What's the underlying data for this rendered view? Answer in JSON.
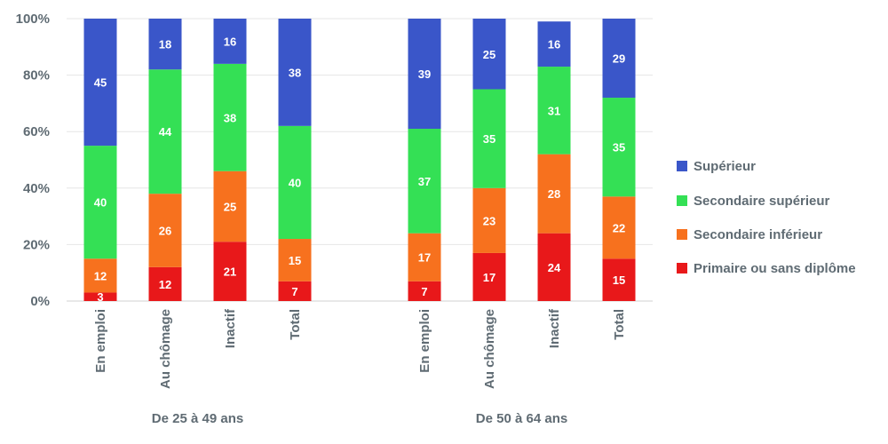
{
  "chart_data": {
    "type": "bar",
    "stacked": true,
    "y_tick_labels": [
      "0%",
      "20%",
      "40%",
      "60%",
      "80%",
      "100%"
    ],
    "ylim": [
      0,
      100
    ],
    "grid": true,
    "legend_position": "right",
    "groups": [
      {
        "label": "De 25 à 49 ans",
        "categories": [
          "En emploi",
          "Au chômage",
          "Inactif",
          "Total"
        ]
      },
      {
        "label": "De 50 à 64 ans",
        "categories": [
          "En emploi",
          "Au chômage",
          "Inactif",
          "Total"
        ]
      }
    ],
    "series": [
      {
        "name": "Primaire ou sans diplôme",
        "color": "#e8181a",
        "values": [
          3,
          12,
          21,
          7,
          7,
          17,
          24,
          15
        ]
      },
      {
        "name": "Secondaire inférieur",
        "color": "#f7711e",
        "values": [
          12,
          26,
          25,
          15,
          17,
          23,
          28,
          22
        ]
      },
      {
        "name": "Secondaire supérieur",
        "color": "#34e055",
        "values": [
          40,
          44,
          38,
          40,
          37,
          35,
          31,
          35
        ]
      },
      {
        "name": "Supérieur",
        "color": "#3a56c9",
        "values": [
          45,
          18,
          16,
          38,
          39,
          25,
          16,
          29
        ]
      }
    ]
  }
}
